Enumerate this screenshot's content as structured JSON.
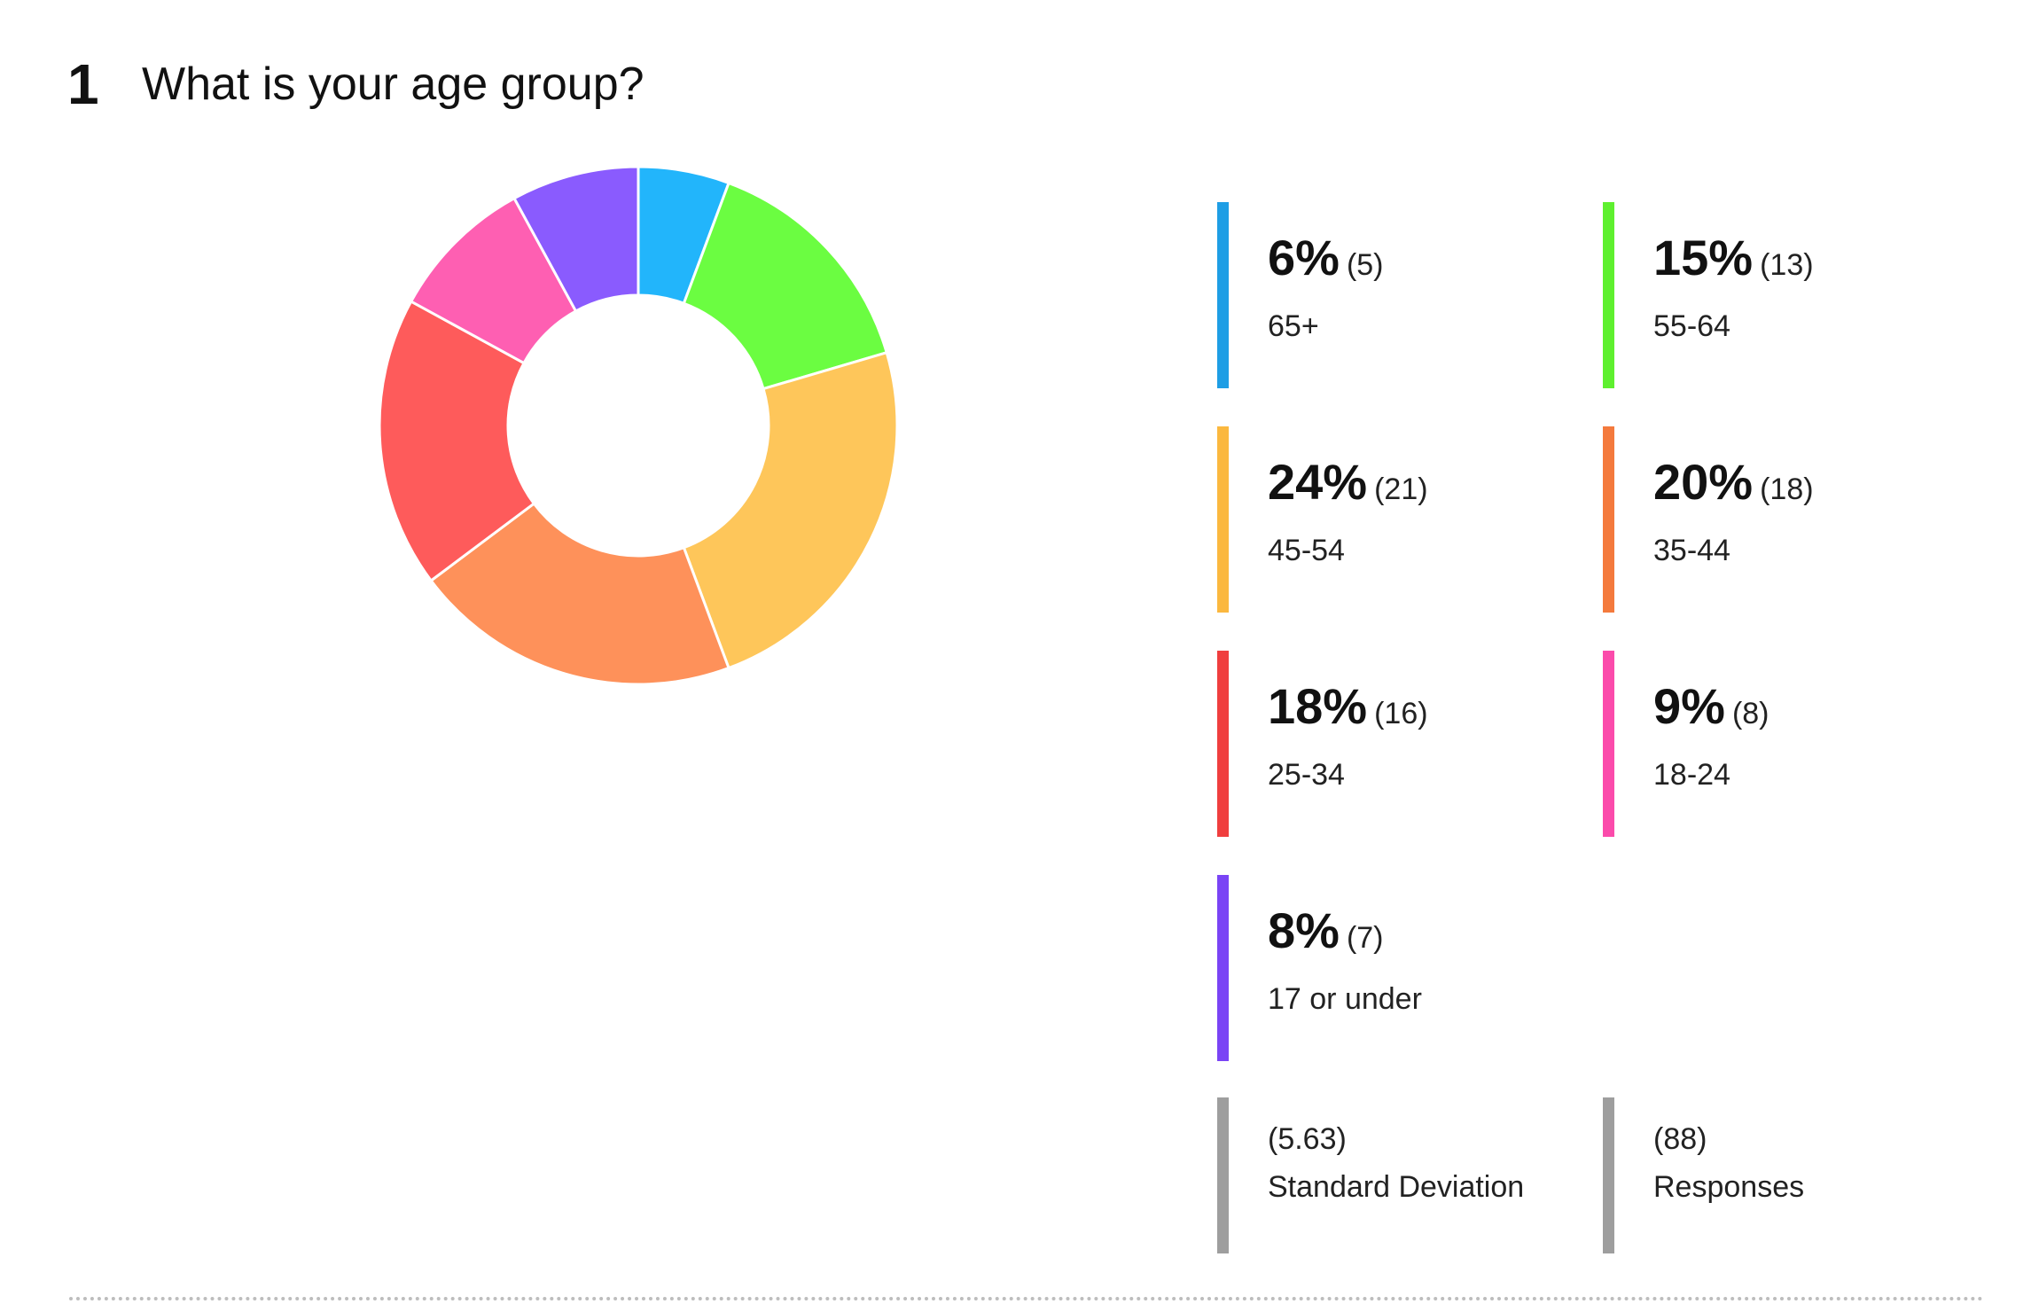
{
  "question": {
    "number": "1",
    "title": "What is your age group?"
  },
  "chart_data": {
    "type": "pie",
    "donut": true,
    "start_angle_deg": 0,
    "direction": "clockwise",
    "slices": [
      {
        "label": "65+",
        "percent_label": "6%",
        "count_label": "(5)",
        "value": 5,
        "color": "#22b5fb"
      },
      {
        "label": "55-64",
        "percent_label": "15%",
        "count_label": "(13)",
        "value": 13,
        "color": "#6bfd41"
      },
      {
        "label": "45-54",
        "percent_label": "24%",
        "count_label": "(21)",
        "value": 21,
        "color": "#fec65a"
      },
      {
        "label": "35-44",
        "percent_label": "20%",
        "count_label": "(18)",
        "value": 18,
        "color": "#fe915a"
      },
      {
        "label": "25-34",
        "percent_label": "18%",
        "count_label": "(16)",
        "value": 16,
        "color": "#fe5b5b"
      },
      {
        "label": "18-24",
        "percent_label": "9%",
        "count_label": "(8)",
        "value": 8,
        "color": "#fe5fb2"
      },
      {
        "label": "17 or under",
        "percent_label": "8%",
        "count_label": "(7)",
        "value": 7,
        "color": "#8a5bfe"
      }
    ],
    "legend_bar_colors": [
      "#1e9ee5",
      "#5ef02f",
      "#fbb83f",
      "#f47a3d",
      "#f03e3e",
      "#fb4bab",
      "#7a44f5"
    ]
  },
  "stats": {
    "std_dev": {
      "value": "(5.63)",
      "label": "Standard Deviation",
      "color": "#9e9e9e"
    },
    "responses": {
      "value": "(88)",
      "label": "Responses",
      "color": "#9e9e9e"
    }
  }
}
